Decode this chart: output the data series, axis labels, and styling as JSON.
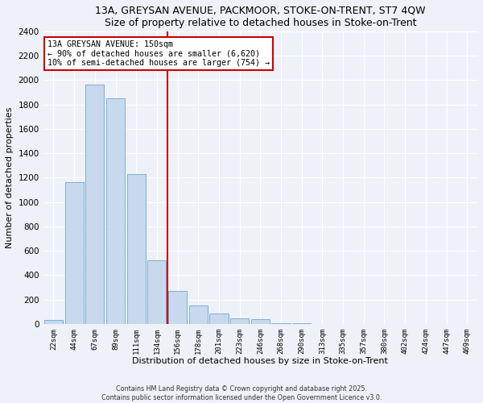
{
  "title": "13A, GREYSAN AVENUE, PACKMOOR, STOKE-ON-TRENT, ST7 4QW",
  "subtitle": "Size of property relative to detached houses in Stoke-on-Trent",
  "xlabel": "Distribution of detached houses by size in Stoke-on-Trent",
  "ylabel": "Number of detached properties",
  "bar_labels": [
    "22sqm",
    "44sqm",
    "67sqm",
    "89sqm",
    "111sqm",
    "134sqm",
    "156sqm",
    "178sqm",
    "201sqm",
    "223sqm",
    "246sqm",
    "268sqm",
    "290sqm",
    "313sqm",
    "335sqm",
    "357sqm",
    "380sqm",
    "402sqm",
    "424sqm",
    "447sqm",
    "469sqm"
  ],
  "bar_values": [
    30,
    1160,
    1960,
    1850,
    1230,
    520,
    270,
    150,
    85,
    45,
    35,
    5,
    2,
    0,
    0,
    0,
    0,
    0,
    0,
    0,
    0
  ],
  "bar_color": "#c8d9ee",
  "bar_edge_color": "#7bafd4",
  "vline_index": 6,
  "vline_color": "#cc0000",
  "ylim": [
    0,
    2400
  ],
  "yticks": [
    0,
    200,
    400,
    600,
    800,
    1000,
    1200,
    1400,
    1600,
    1800,
    2000,
    2200,
    2400
  ],
  "annotation_title": "13A GREYSAN AVENUE: 150sqm",
  "annotation_line1": "← 90% of detached houses are smaller (6,620)",
  "annotation_line2": "10% of semi-detached houses are larger (754) →",
  "annotation_box_color": "#ffffff",
  "annotation_box_edge": "#cc0000",
  "footer_line1": "Contains HM Land Registry data © Crown copyright and database right 2025.",
  "footer_line2": "Contains public sector information licensed under the Open Government Licence v3.0.",
  "bg_color": "#eef1f7",
  "grid_color": "#ffffff",
  "title_font": "DejaVu Sans",
  "mono_font": "DejaVu Sans Mono"
}
